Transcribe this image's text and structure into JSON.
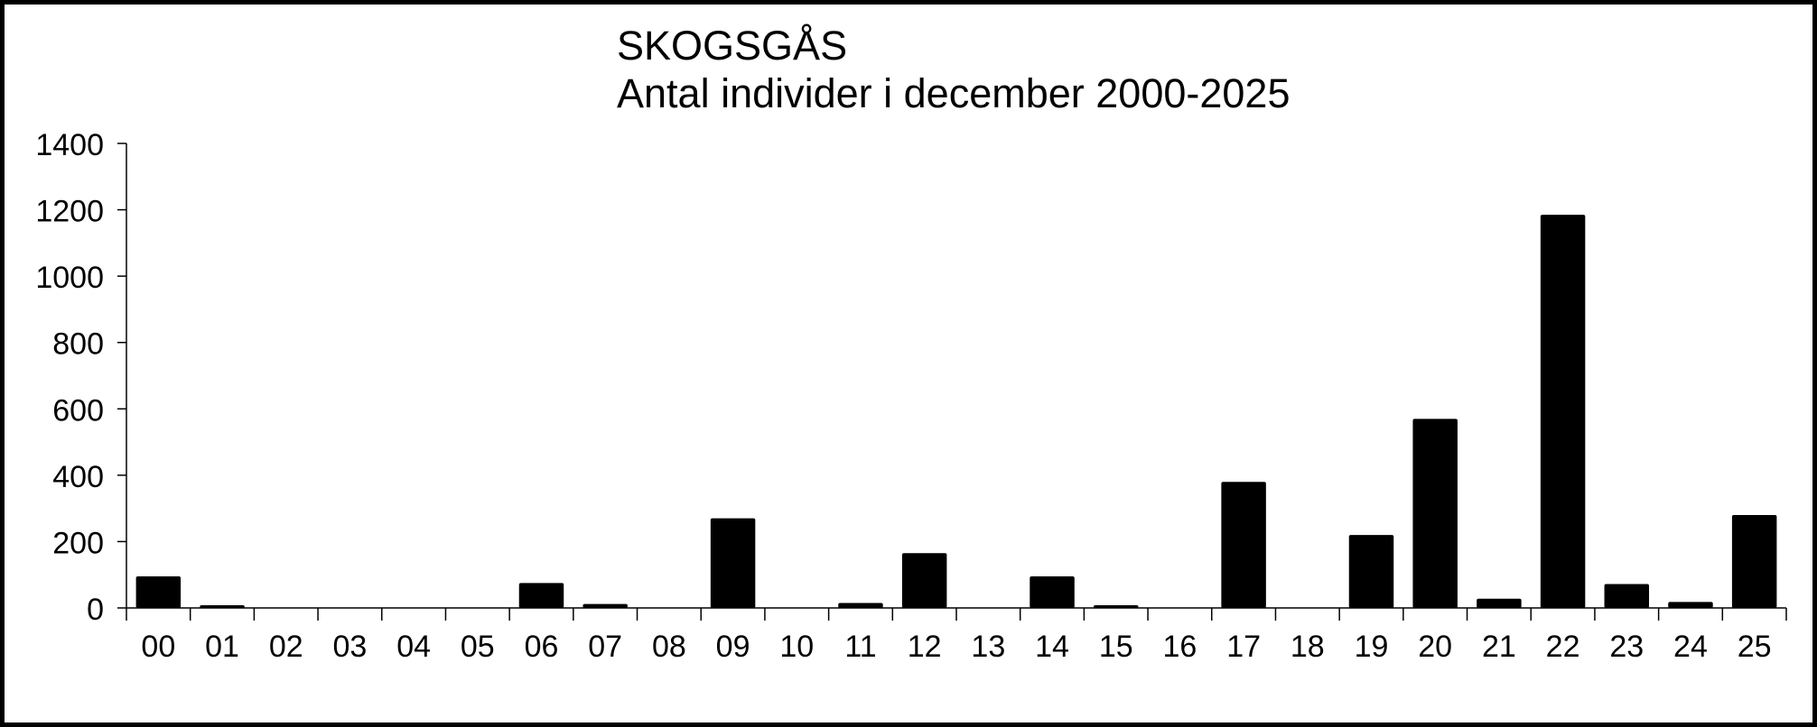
{
  "chart_data": {
    "type": "bar",
    "title": "SKOGSGÅS",
    "subtitle": "Antal individer i december 2000-2025",
    "xlabel": "",
    "ylabel": "",
    "categories": [
      "00",
      "01",
      "02",
      "03",
      "04",
      "05",
      "06",
      "07",
      "08",
      "09",
      "10",
      "11",
      "12",
      "13",
      "14",
      "15",
      "16",
      "17",
      "18",
      "19",
      "20",
      "21",
      "22",
      "23",
      "24",
      "25"
    ],
    "values": [
      95,
      8,
      0,
      0,
      0,
      0,
      75,
      12,
      0,
      270,
      0,
      15,
      165,
      0,
      95,
      8,
      0,
      380,
      0,
      220,
      570,
      28,
      1185,
      72,
      18,
      280
    ],
    "ylim": [
      0,
      1400
    ],
    "yticks": [
      0,
      200,
      400,
      600,
      800,
      1000,
      1200,
      1400
    ],
    "grid": false,
    "legend": "none",
    "bar_color": "#000000"
  }
}
